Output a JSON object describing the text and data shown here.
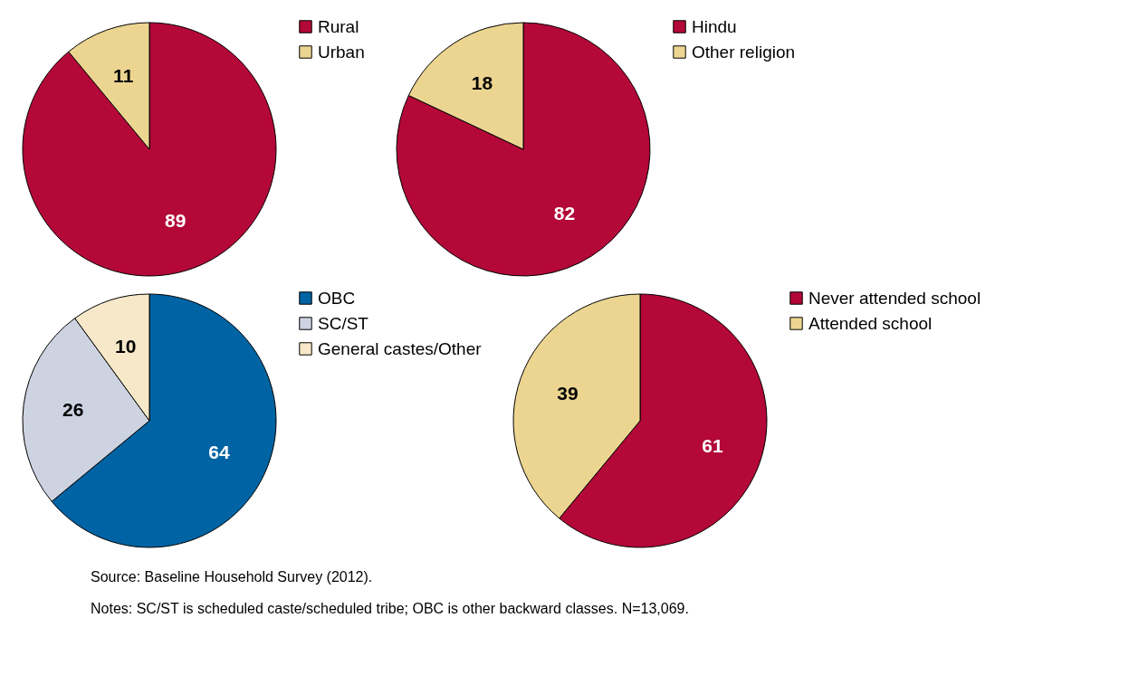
{
  "chart_data": [
    {
      "type": "pie",
      "categories": [
        "Rural",
        "Urban"
      ],
      "values": [
        89,
        11
      ],
      "colors": [
        "#b30838",
        "#ecd591"
      ],
      "data_labels": true,
      "legend": "right"
    },
    {
      "type": "pie",
      "categories": [
        "Hindu",
        "Other religion"
      ],
      "values": [
        82,
        18
      ],
      "colors": [
        "#b30838",
        "#ecd591"
      ],
      "data_labels": true,
      "legend": "right"
    },
    {
      "type": "pie",
      "categories": [
        "OBC",
        "SC/ST",
        "General castes/Other"
      ],
      "values": [
        64,
        26,
        10
      ],
      "colors": [
        "#0063a3",
        "#cdd3e1",
        "#f6e8c8"
      ],
      "data_labels": true,
      "legend": "right"
    },
    {
      "type": "pie",
      "categories": [
        "Never attended school",
        "Attended school"
      ],
      "values": [
        61,
        39
      ],
      "colors": [
        "#b30838",
        "#ecd591"
      ],
      "data_labels": true,
      "legend": "right",
      "annotations": [
        "Source:    Baseline Household Survey (2012).",
        "Notes:     SC/ST is scheduled caste/scheduled tribe; OBC is other backward classes.  N=13,069."
      ]
    }
  ]
}
